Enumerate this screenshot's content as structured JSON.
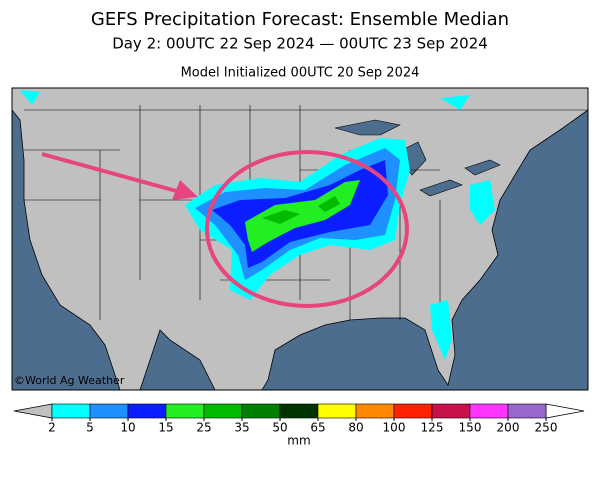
{
  "header": {
    "title": "GEFS Precipitation Forecast: Ensemble Median",
    "subtitle": "Day 2: 00UTC 22 Sep 2024 — 00UTC 23 Sep 2024",
    "init": "Model Initialized 00UTC 20 Sep 2024"
  },
  "map": {
    "credit": "©World Ag Weather"
  },
  "colorbar": {
    "ticks": [
      2,
      5,
      10,
      15,
      25,
      35,
      50,
      65,
      80,
      100,
      125,
      150,
      200,
      250
    ],
    "colors": [
      "#00ffff",
      "#1e90ff",
      "#0a1eff",
      "#22ee22",
      "#00bb00",
      "#008000",
      "#003300",
      "#ffff00",
      "#ff8800",
      "#ff2200",
      "#c8104a",
      "#ff33ff",
      "#9966cc"
    ],
    "unit": "mm"
  }
}
